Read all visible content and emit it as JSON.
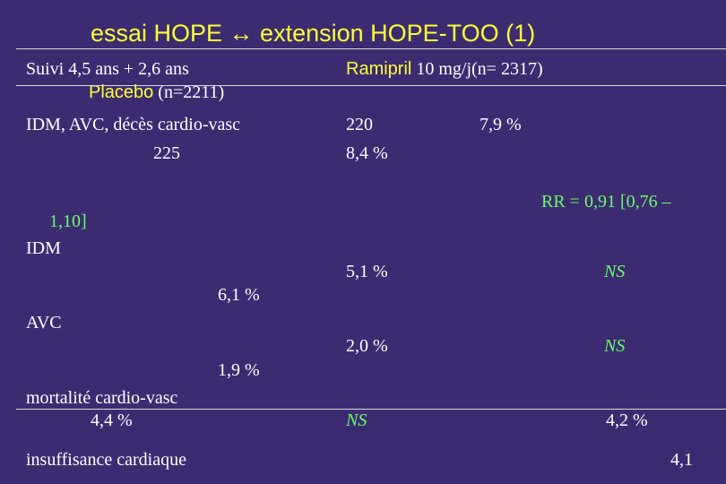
{
  "title": "essai HOPE ↔ extension HOPE-TOO (1)",
  "header": {
    "followup": "Suivi 4,5 ans + 2,6 ans",
    "ramipril_name": "Ramipril",
    "ramipril_dose": " 10 mg/j(n= 2317)",
    "placebo_name": "Placebo",
    "placebo_n": " (n=2211)"
  },
  "rows": {
    "composite_label": "IDM, AVC, décès cardio-vasc",
    "composite_ramipril_n": "220",
    "composite_ramipril_pct": "7,9 %",
    "composite_placebo_n": "225",
    "composite_placebo_pct": "8,4 %",
    "rr_line1": "RR = 0,91 [0,76 –",
    "rr_line2": "1,10]",
    "idm_label": "IDM",
    "idm_ramipril": "5,1 %",
    "idm_sig": "NS",
    "idm_placebo": "6,1 %",
    "avc_label": "AVC",
    "avc_ramipril": "2,0 %",
    "avc_sig": "NS",
    "avc_placebo": "1,9 %",
    "mort_label": "mortalité cardio-vasc",
    "mort_placebo": "4,4 %",
    "mort_sig": "NS",
    "mort_ramipril": "4,2 %",
    "ic_label": "insuffisance cardiaque",
    "ic_value": "4,1"
  },
  "colors": {
    "background": "#3d2b72",
    "title": "#ffff33",
    "rr_and_ns": "#66ff66",
    "text": "#ffffff"
  }
}
